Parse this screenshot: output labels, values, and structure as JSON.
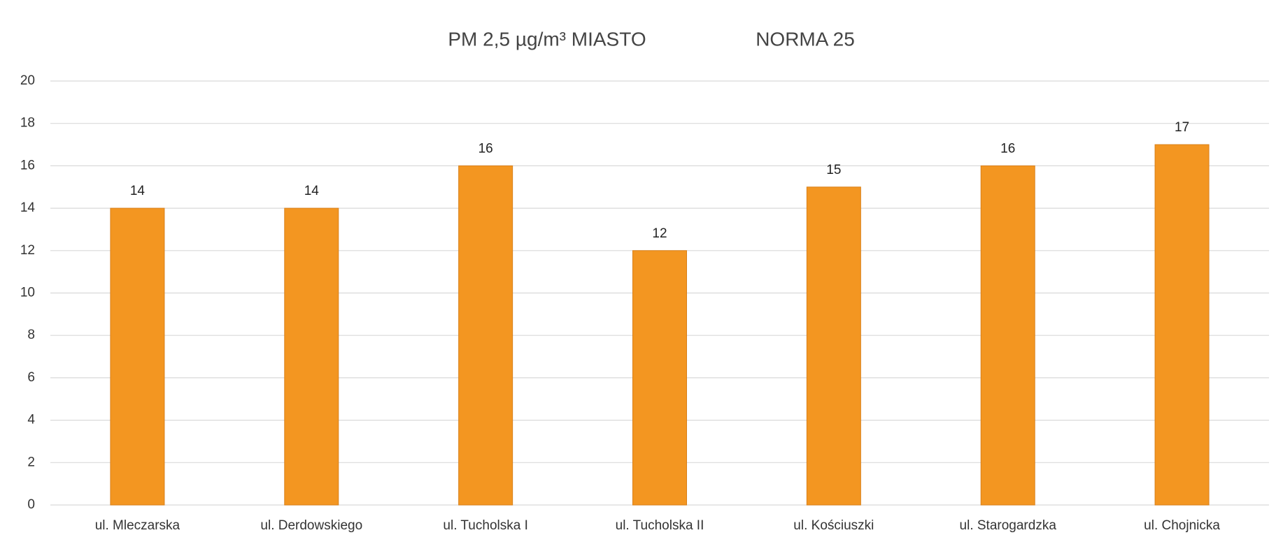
{
  "chart_data": {
    "type": "bar",
    "title": "PM 2,5 µg/m³ MIASTO",
    "annotation": "NORMA 25",
    "categories": [
      "ul. Mleczarska",
      "ul. Derdowskiego",
      "ul. Tucholska I",
      "ul. Tucholska II",
      "ul. Kościuszki",
      "ul. Starogardzka",
      "ul. Chojnicka"
    ],
    "values": [
      14,
      14,
      16,
      12,
      15,
      16,
      17
    ],
    "color": "#f39621",
    "ylim": [
      0,
      20
    ],
    "yticks": [
      0,
      2,
      4,
      6,
      8,
      10,
      12,
      14,
      16,
      18,
      20
    ],
    "grid": true
  }
}
